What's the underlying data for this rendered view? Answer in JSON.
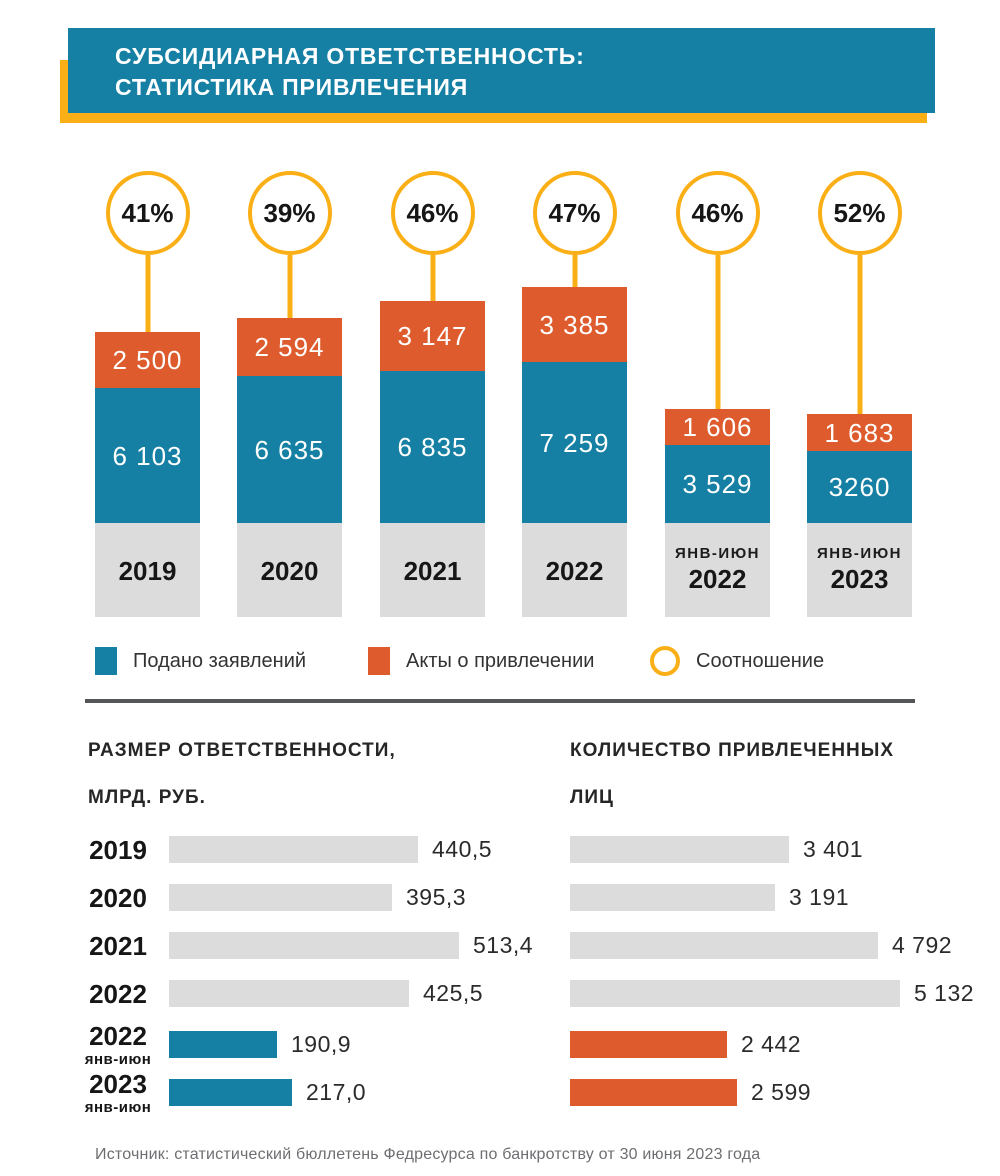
{
  "header": {
    "title_line1": "СУБСИДИАРНАЯ ОТВЕТСТВЕННОСТЬ:",
    "title_line2": "СТАТИСТИКА ПРИВЛЕЧЕНИЯ"
  },
  "colors": {
    "teal": "#1580A3",
    "orange": "#DD5B2C",
    "yellow": "#FBAF17",
    "gray_bar": "#DCDCDC",
    "dark_text": "#161616",
    "divider": "#55565A",
    "footer_text": "#6D6E71"
  },
  "chart_data": [
    {
      "type": "bar",
      "subtype": "stacked_columns",
      "categories": [
        "2019",
        "2020",
        "2021",
        "2022",
        "янв-июн 2022",
        "янв-июн 2023"
      ],
      "category_labels": [
        {
          "sub": "",
          "year": "2019"
        },
        {
          "sub": "",
          "year": "2020"
        },
        {
          "sub": "",
          "year": "2021"
        },
        {
          "sub": "",
          "year": "2022"
        },
        {
          "sub": "ЯНВ-ИЮН",
          "year": "2022"
        },
        {
          "sub": "ЯНВ-ИЮН",
          "year": "2023"
        }
      ],
      "series": [
        {
          "name": "Подано заявлений",
          "color": "#1580A3",
          "values": [
            6103,
            6635,
            6835,
            7259,
            3529,
            3260
          ],
          "display": [
            "6 103",
            "6 635",
            "6 835",
            "7 259",
            "3 529",
            "3260"
          ]
        },
        {
          "name": "Акты о привлечении",
          "color": "#DD5B2C",
          "values": [
            2500,
            2594,
            3147,
            3385,
            1606,
            1683
          ],
          "display": [
            "2 500",
            "2 594",
            "3 147",
            "3 385",
            "1 606",
            "1 683"
          ]
        }
      ],
      "ratio_series": {
        "name": "Соотношение",
        "display": [
          "41%",
          "39%",
          "46%",
          "47%",
          "46%",
          "52%"
        ]
      },
      "legend_position": "bottom",
      "grid": false
    },
    {
      "type": "bar",
      "subtype": "horizontal",
      "title": "РАЗМЕР ОТВЕТСТВЕННОСТИ, МЛРД. РУБ.",
      "title_line1": "РАЗМЕР ОТВЕТСТВЕННОСТИ,",
      "title_line2": "МЛРД. РУБ.",
      "categories": [
        "2019",
        "2020",
        "2021",
        "2022",
        "2022 янв-июн",
        "2023 янв-июн"
      ],
      "category_labels": [
        {
          "year": "2019",
          "sub": ""
        },
        {
          "year": "2020",
          "sub": ""
        },
        {
          "year": "2021",
          "sub": ""
        },
        {
          "year": "2022",
          "sub": ""
        },
        {
          "year": "2022",
          "sub": "янв-июн"
        },
        {
          "year": "2023",
          "sub": "янв-июн"
        }
      ],
      "values": [
        440.5,
        395.3,
        513.4,
        425.5,
        190.9,
        217.0
      ],
      "display": [
        "440,5",
        "395,3",
        "513,4",
        "425,5",
        "190,9",
        "217,0"
      ],
      "bar_colors": [
        "#DCDCDC",
        "#DCDCDC",
        "#DCDCDC",
        "#DCDCDC",
        "#1580A3",
        "#1580A3"
      ],
      "grid": false
    },
    {
      "type": "bar",
      "subtype": "horizontal",
      "title": "КОЛИЧЕСТВО ПРИВЛЕЧЕННЫХ ЛИЦ",
      "title_line1": "КОЛИЧЕСТВО ПРИВЛЕЧЕННЫХ",
      "title_line2": "ЛИЦ",
      "categories": [
        "2019",
        "2020",
        "2021",
        "2022",
        "2022 янв-июн",
        "2023 янв-июн"
      ],
      "values": [
        3401,
        3191,
        4792,
        5132,
        2442,
        2599
      ],
      "display": [
        "3 401",
        "3 191",
        "4 792",
        "5 132",
        "2 442",
        "2 599"
      ],
      "bar_colors": [
        "#DCDCDC",
        "#DCDCDC",
        "#DCDCDC",
        "#DCDCDC",
        "#DD5B2C",
        "#DD5B2C"
      ],
      "grid": false
    }
  ],
  "footer": {
    "source": "Источник: статистический бюллетень Федресурса по банкротству от 30 июня 2023 года"
  }
}
